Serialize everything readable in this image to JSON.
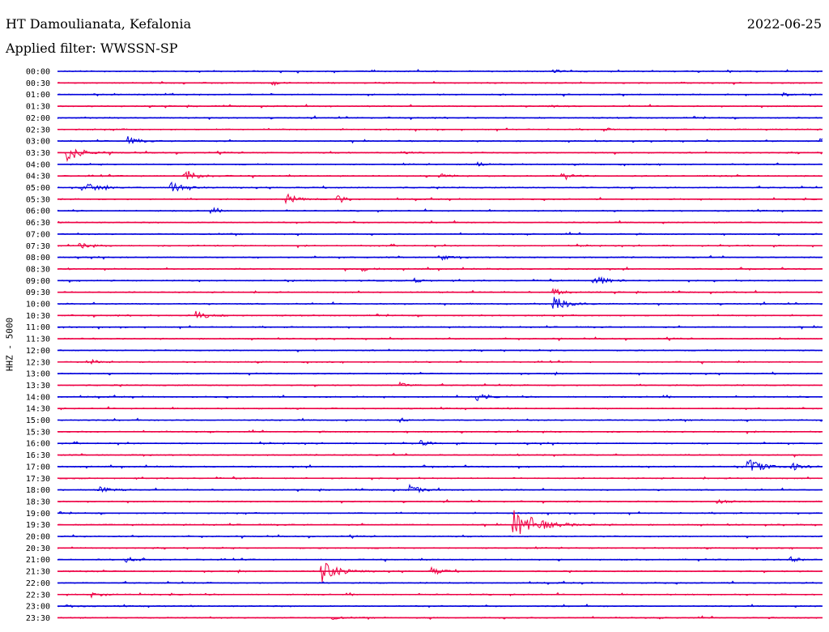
{
  "header": {
    "station": "HT Damoulianata, Kefalonia",
    "date": "2022-06-25",
    "filter": "Applied filter: WWSSN-SP"
  },
  "colors": {
    "even_trace": "#0000dd",
    "odd_trace": "#ee0044",
    "background": "#ffffff"
  },
  "chart_data": {
    "type": "line",
    "title": "",
    "ylabel": "HHZ - 5000",
    "xlabel": "",
    "rows": [
      "00:00",
      "00:30",
      "01:00",
      "01:30",
      "02:00",
      "02:30",
      "03:00",
      "03:30",
      "04:00",
      "04:30",
      "05:00",
      "05:30",
      "06:00",
      "06:30",
      "07:00",
      "07:30",
      "08:00",
      "08:30",
      "09:00",
      "09:30",
      "10:00",
      "10:30",
      "11:00",
      "11:30",
      "12:00",
      "12:30",
      "13:00",
      "13:30",
      "14:00",
      "14:30",
      "15:00",
      "15:30",
      "16:00",
      "16:30",
      "17:00",
      "17:30",
      "18:00",
      "18:30",
      "19:00",
      "19:30",
      "20:00",
      "20:30",
      "21:00",
      "21:30",
      "22:00",
      "22:30",
      "23:00",
      "23:30"
    ],
    "row_minutes": 30,
    "series_colors": [
      "#0000dd",
      "#ee0044"
    ],
    "events": [
      {
        "row": "00:00",
        "minute": 19.5,
        "amplitude": 2
      },
      {
        "row": "00:30",
        "minute": 8.5,
        "amplitude": 1.5
      },
      {
        "row": "01:00",
        "minute": 28.5,
        "amplitude": 2
      },
      {
        "row": "01:30",
        "minute": 19.3,
        "amplitude": 2
      },
      {
        "row": "02:30",
        "minute": 21.5,
        "amplitude": 1.5
      },
      {
        "row": "03:00",
        "minute": 2.8,
        "amplitude": 5
      },
      {
        "row": "03:00",
        "minute": 29.9,
        "amplitude": 4
      },
      {
        "row": "03:30",
        "minute": 0.4,
        "amplitude": 10
      },
      {
        "row": "03:30",
        "minute": 13.5,
        "amplitude": 3
      },
      {
        "row": "04:00",
        "minute": 16.5,
        "amplitude": 3
      },
      {
        "row": "04:30",
        "minute": 5.0,
        "amplitude": 8
      },
      {
        "row": "04:30",
        "minute": 15.0,
        "amplitude": 4
      },
      {
        "row": "04:30",
        "minute": 19.8,
        "amplitude": 4
      },
      {
        "row": "05:00",
        "minute": 1.0,
        "amplitude": 8
      },
      {
        "row": "05:00",
        "minute": 4.5,
        "amplitude": 6
      },
      {
        "row": "05:30",
        "minute": 9.0,
        "amplitude": 6
      },
      {
        "row": "05:30",
        "minute": 11.0,
        "amplitude": 5
      },
      {
        "row": "06:00",
        "minute": 6.0,
        "amplitude": 3
      },
      {
        "row": "07:30",
        "minute": 0.9,
        "amplitude": 4
      },
      {
        "row": "08:00",
        "minute": 15.0,
        "amplitude": 4
      },
      {
        "row": "08:30",
        "minute": 12.0,
        "amplitude": 3
      },
      {
        "row": "09:00",
        "minute": 14.0,
        "amplitude": 3
      },
      {
        "row": "09:00",
        "minute": 21.0,
        "amplitude": 8
      },
      {
        "row": "09:30",
        "minute": 19.5,
        "amplitude": 4
      },
      {
        "row": "10:00",
        "minute": 19.5,
        "amplitude": 9
      },
      {
        "row": "10:30",
        "minute": 5.5,
        "amplitude": 6
      },
      {
        "row": "12:30",
        "minute": 1.4,
        "amplitude": 2
      },
      {
        "row": "13:30",
        "minute": 13.5,
        "amplitude": 3
      },
      {
        "row": "14:00",
        "minute": 16.5,
        "amplitude": 4
      },
      {
        "row": "15:00",
        "minute": 13.5,
        "amplitude": 2
      },
      {
        "row": "16:00",
        "minute": 14.3,
        "amplitude": 3
      },
      {
        "row": "17:00",
        "minute": 27.1,
        "amplitude": 10
      },
      {
        "row": "17:00",
        "minute": 28.8,
        "amplitude": 5
      },
      {
        "row": "18:00",
        "minute": 1.6,
        "amplitude": 5
      },
      {
        "row": "18:00",
        "minute": 13.8,
        "amplitude": 6
      },
      {
        "row": "18:30",
        "minute": 25.9,
        "amplitude": 3
      },
      {
        "row": "19:30",
        "minute": 17.9,
        "amplitude": 20
      },
      {
        "row": "21:00",
        "minute": 2.7,
        "amplitude": 4
      },
      {
        "row": "21:00",
        "minute": 28.7,
        "amplitude": 4
      },
      {
        "row": "21:30",
        "minute": 10.4,
        "amplitude": 12
      },
      {
        "row": "21:30",
        "minute": 14.7,
        "amplitude": 5
      },
      {
        "row": "22:30",
        "minute": 1.4,
        "amplitude": 4
      },
      {
        "row": "23:00",
        "minute": 0.4,
        "amplitude": 2
      },
      {
        "row": "23:30",
        "minute": 10.8,
        "amplitude": 2
      }
    ]
  }
}
